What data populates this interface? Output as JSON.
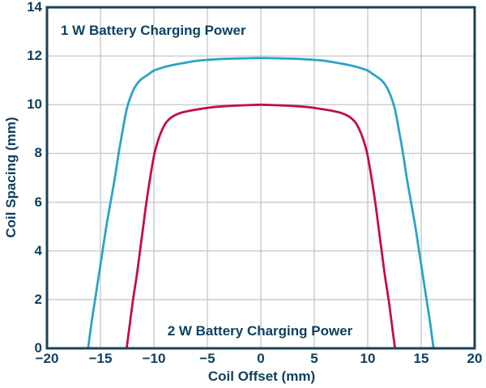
{
  "colors": {
    "background": "#ffffff",
    "axis_frame": "#1a4159",
    "grid": "#c9ced4",
    "text": "#0f4061",
    "series_1w": "#2ba4c4",
    "series_2w": "#c10f4a"
  },
  "chart_data": {
    "type": "line",
    "title": "",
    "xlabel": "Coil Offset (mm)",
    "ylabel": "Coil Spacing (mm)",
    "xlim": [
      -20,
      20
    ],
    "ylim": [
      0,
      14
    ],
    "xticks": [
      -20,
      -15,
      -10,
      -5,
      0,
      5,
      10,
      15,
      20
    ],
    "yticks": [
      0,
      2,
      4,
      6,
      8,
      10,
      12,
      14
    ],
    "xtick_labels": [
      "−20",
      "−15",
      "−10",
      "−5",
      "0",
      "5",
      "10",
      "15",
      "20"
    ],
    "ytick_labels": [
      "0",
      "2",
      "4",
      "6",
      "8",
      "10",
      "12",
      "14"
    ],
    "grid": true,
    "legend_position": "annotations-inside-plot",
    "annotations": [
      {
        "text": "1 W Battery Charging Power",
        "series": "1W",
        "placement": "inside-top-left"
      },
      {
        "text": "2 W Battery Charging Power",
        "series": "2W",
        "placement": "inside-bottom-center"
      }
    ],
    "series": [
      {
        "name": "1 W Battery Charging Power",
        "color_key": "series_1w",
        "points": [
          [
            -16.15,
            0
          ],
          [
            -15.85,
            1
          ],
          [
            -15.5,
            2
          ],
          [
            -15.15,
            3
          ],
          [
            -14.8,
            4
          ],
          [
            -14.45,
            5
          ],
          [
            -14.05,
            6
          ],
          [
            -13.65,
            7
          ],
          [
            -13.3,
            8
          ],
          [
            -12.9,
            9
          ],
          [
            -12.55,
            9.8
          ],
          [
            -12.2,
            10.3
          ],
          [
            -11.8,
            10.7
          ],
          [
            -11.3,
            11
          ],
          [
            -10.5,
            11.25
          ],
          [
            -10,
            11.4
          ],
          [
            -9,
            11.55
          ],
          [
            -8,
            11.65
          ],
          [
            -7,
            11.73
          ],
          [
            -6,
            11.8
          ],
          [
            -5,
            11.84
          ],
          [
            -4,
            11.87
          ],
          [
            -3,
            11.89
          ],
          [
            -2,
            11.9
          ],
          [
            -1,
            11.91
          ],
          [
            0,
            11.92
          ],
          [
            1,
            11.91
          ],
          [
            2,
            11.9
          ],
          [
            3,
            11.89
          ],
          [
            4,
            11.87
          ],
          [
            5,
            11.84
          ],
          [
            6,
            11.8
          ],
          [
            7,
            11.73
          ],
          [
            8,
            11.65
          ],
          [
            9,
            11.55
          ],
          [
            10,
            11.4
          ],
          [
            10.5,
            11.25
          ],
          [
            11.3,
            11
          ],
          [
            11.8,
            10.7
          ],
          [
            12.2,
            10.3
          ],
          [
            12.55,
            9.8
          ],
          [
            12.9,
            9
          ],
          [
            13.3,
            8
          ],
          [
            13.65,
            7
          ],
          [
            14.05,
            6
          ],
          [
            14.45,
            5
          ],
          [
            14.8,
            4
          ],
          [
            15.15,
            3
          ],
          [
            15.5,
            2
          ],
          [
            15.85,
            1
          ],
          [
            16.15,
            0
          ]
        ]
      },
      {
        "name": "2 W Battery Charging Power",
        "color_key": "series_2w",
        "points": [
          [
            -12.55,
            0
          ],
          [
            -12.25,
            1
          ],
          [
            -11.95,
            2
          ],
          [
            -11.6,
            3
          ],
          [
            -11.3,
            4
          ],
          [
            -11,
            5
          ],
          [
            -10.7,
            6
          ],
          [
            -10.35,
            7
          ],
          [
            -9.95,
            8
          ],
          [
            -9.6,
            8.55
          ],
          [
            -9.2,
            9
          ],
          [
            -8.8,
            9.3
          ],
          [
            -8.3,
            9.5
          ],
          [
            -7.6,
            9.65
          ],
          [
            -7,
            9.72
          ],
          [
            -6,
            9.8
          ],
          [
            -5,
            9.87
          ],
          [
            -4,
            9.92
          ],
          [
            -3,
            9.95
          ],
          [
            -2,
            9.97
          ],
          [
            -1,
            9.99
          ],
          [
            0,
            10
          ],
          [
            1,
            9.99
          ],
          [
            2,
            9.97
          ],
          [
            3,
            9.95
          ],
          [
            4,
            9.92
          ],
          [
            5,
            9.87
          ],
          [
            6,
            9.8
          ],
          [
            7,
            9.72
          ],
          [
            7.6,
            9.65
          ],
          [
            8.3,
            9.5
          ],
          [
            8.8,
            9.3
          ],
          [
            9.2,
            9
          ],
          [
            9.6,
            8.55
          ],
          [
            9.95,
            8
          ],
          [
            10.35,
            7
          ],
          [
            10.7,
            6
          ],
          [
            11,
            5
          ],
          [
            11.3,
            4
          ],
          [
            11.6,
            3
          ],
          [
            11.95,
            2
          ],
          [
            12.25,
            1
          ],
          [
            12.55,
            0
          ]
        ]
      }
    ]
  }
}
